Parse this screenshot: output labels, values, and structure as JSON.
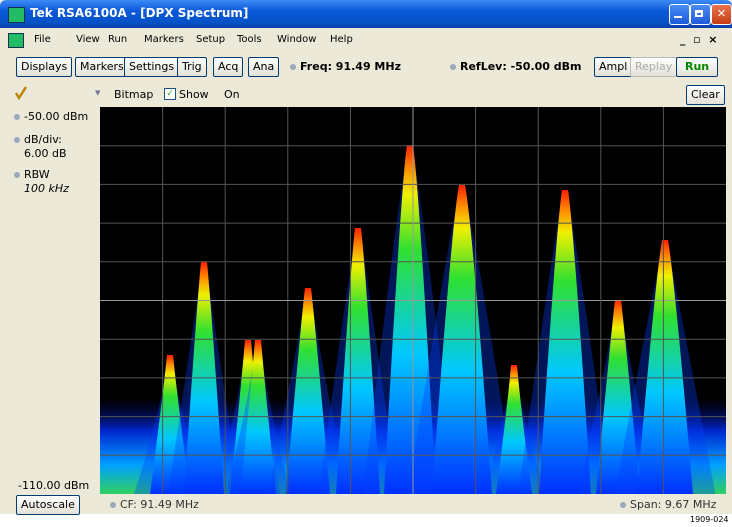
{
  "title_bar": {
    "title": "Tek RSA6100A - [DPX Spectrum]"
  },
  "menu": [
    "File",
    "View",
    "Run",
    "Markers",
    "Setup",
    "Tools",
    "Window",
    "Help"
  ],
  "toolbar": {
    "buttons": [
      "Displays",
      "Markers",
      "Settings",
      "Trig",
      "Acq",
      "Ana"
    ],
    "freq": "Freq: 91.49 MHz",
    "reflev": "RefLev: -50.00 dBm",
    "ampl": "Ampl",
    "replay": "Replay",
    "run": "Run"
  },
  "display_bar": {
    "trace": "Bitmap",
    "show": "Show",
    "state": "On",
    "clear": "Clear"
  },
  "left_panel": {
    "ref": "-50.00 dBm",
    "scale_label": "dB/div:",
    "scale": "6.00 dB",
    "rbw_label": "RBW",
    "rbw": "100 kHz",
    "bottom": "-110.00 dBm",
    "autoscale": "Autoscale"
  },
  "footer": {
    "cf": "CF: 91.49 MHz",
    "span": "Span: 9.67 MHz"
  },
  "figure_id": "1909-024"
}
